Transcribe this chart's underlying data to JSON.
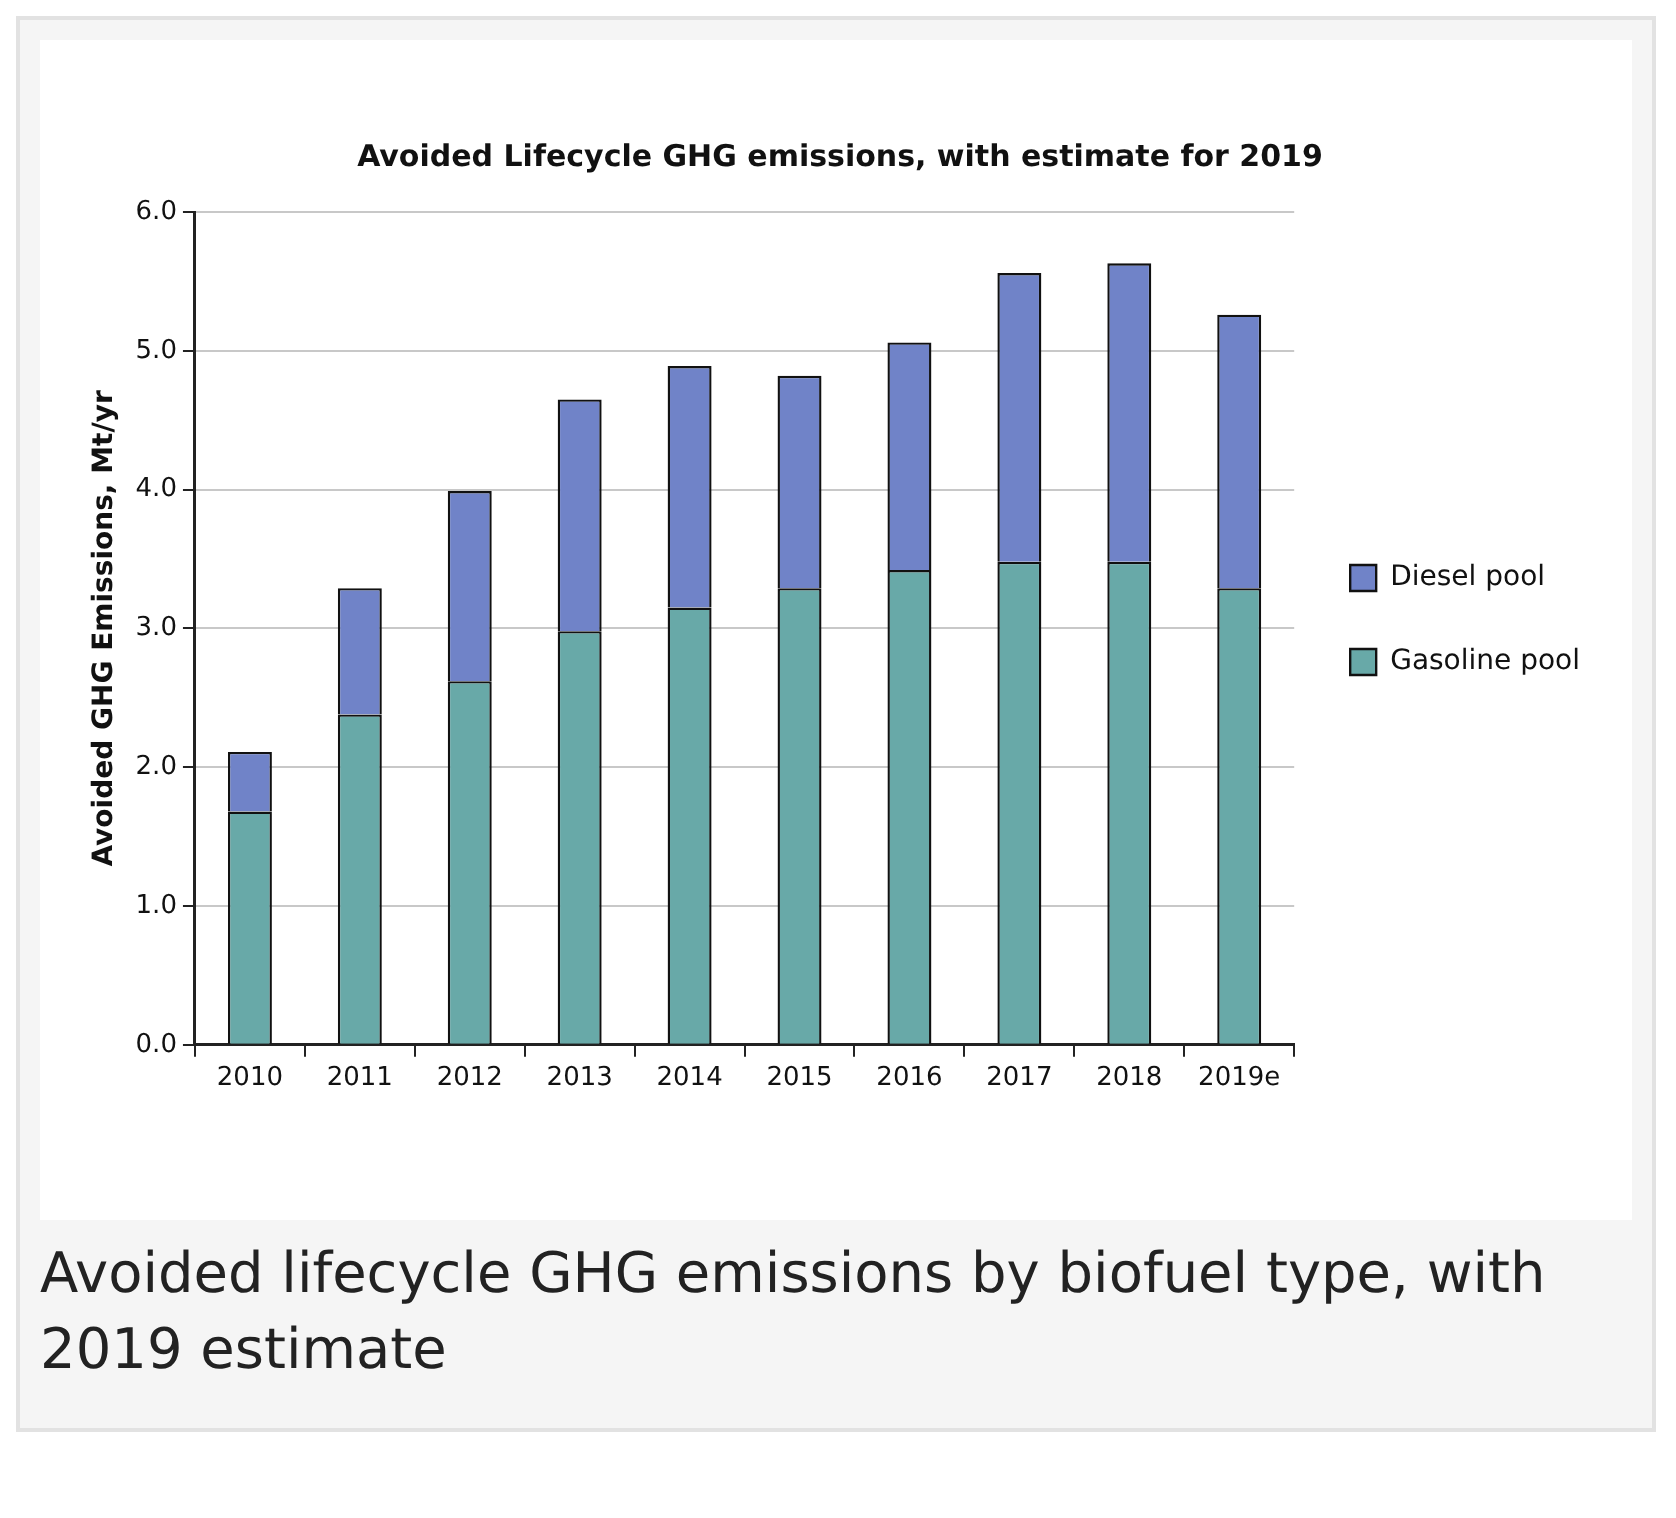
{
  "chart_data": {
    "type": "bar",
    "title": "Avoided Lifecycle GHG emissions, with estimate for 2019",
    "ylabel": "Avoided GHG Emissions, Mt/yr",
    "categories": [
      "2010",
      "2011",
      "2012",
      "2013",
      "2014",
      "2015",
      "2016",
      "2017",
      "2018",
      "2019e"
    ],
    "series": [
      {
        "name": "Gasoline pool",
        "color": "#68a9a8",
        "values": [
          1.68,
          2.38,
          2.62,
          2.98,
          3.15,
          3.29,
          3.42,
          3.48,
          3.48,
          3.29
        ]
      },
      {
        "name": "Diesel pool",
        "color": "#7083c8",
        "values": [
          0.43,
          0.91,
          1.37,
          1.67,
          1.74,
          1.53,
          1.64,
          2.08,
          2.15,
          1.97
        ]
      }
    ],
    "stacked": true,
    "ylim": [
      0,
      6
    ],
    "yticks": [
      {
        "value": 0,
        "label": "0.0"
      },
      {
        "value": 1,
        "label": "1.0"
      },
      {
        "value": 2,
        "label": "2.0"
      },
      {
        "value": 3,
        "label": "3.0"
      },
      {
        "value": 4,
        "label": "4.0"
      },
      {
        "value": 5,
        "label": "5.0"
      },
      {
        "value": 6,
        "label": "6.0"
      }
    ],
    "grid": "y",
    "legend": "right",
    "annotations": [
      "Avoided lifecycle GHG emissions by biofuel type, with 2019 estimate"
    ]
  }
}
